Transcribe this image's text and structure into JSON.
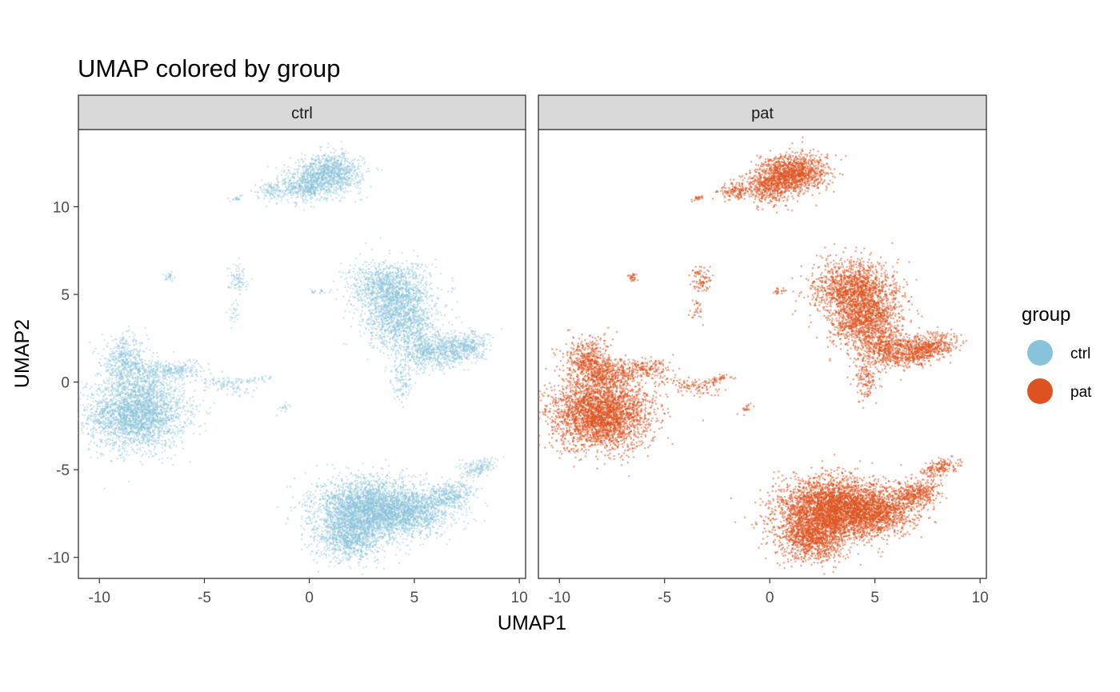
{
  "chart_data": {
    "type": "scatter",
    "title": "UMAP colored by group",
    "xlabel": "UMAP1",
    "ylabel": "UMAP2",
    "xlim": [
      -11,
      10.3
    ],
    "ylim": [
      -11.2,
      14.4
    ],
    "xticks": [
      -10,
      -5,
      0,
      5,
      10
    ],
    "xtick_labels": [
      "-10",
      "-5",
      "0",
      "5",
      "10"
    ],
    "yticks": [
      -10,
      -5,
      0,
      5,
      10
    ],
    "ytick_labels": [
      "-10",
      "-5",
      "0",
      "5",
      "10"
    ],
    "facet_by": "group",
    "panels": [
      {
        "label": "ctrl",
        "color": "#89c3db"
      },
      {
        "label": "pat",
        "color": "#dd5422"
      }
    ],
    "legend": {
      "title": "group",
      "position": "right",
      "entries": [
        {
          "label": "ctrl",
          "color": "#89c3db"
        },
        {
          "label": "pat",
          "color": "#dd5422"
        }
      ]
    },
    "grid": false,
    "clusters": [
      {
        "name": "bottom-left blob",
        "center": [
          -8.2,
          -1.8
        ],
        "size": "very large"
      },
      {
        "name": "left arm",
        "center": [
          -8.8,
          1.2
        ],
        "size": "medium"
      },
      {
        "name": "left bridge",
        "center": [
          -6.0,
          0.6
        ],
        "size": "small"
      },
      {
        "name": "mid-left streak",
        "center": [
          -3.5,
          -0.3
        ],
        "size": "small"
      },
      {
        "name": "top cluster",
        "center": [
          0.9,
          11.4
        ],
        "size": "large"
      },
      {
        "name": "top-left speck",
        "center": [
          -3.5,
          10.5
        ],
        "size": "tiny"
      },
      {
        "name": "small left speck",
        "center": [
          -6.8,
          6.0
        ],
        "size": "tiny"
      },
      {
        "name": "mid upper speck",
        "center": [
          -3.4,
          5.7
        ],
        "size": "small"
      },
      {
        "name": "center speck",
        "center": [
          0.3,
          5.2
        ],
        "size": "tiny"
      },
      {
        "name": "right upper cluster",
        "center": [
          4.3,
          4.2
        ],
        "size": "large"
      },
      {
        "name": "right tail",
        "center": [
          7.2,
          2.0
        ],
        "size": "medium"
      },
      {
        "name": "bottom-right cluster",
        "center": [
          3.2,
          -7.8
        ],
        "size": "very large"
      },
      {
        "name": "bottom-right tail",
        "center": [
          7.6,
          -5.4
        ],
        "size": "medium"
      },
      {
        "name": "small center-low speck",
        "center": [
          -1.2,
          -1.4
        ],
        "size": "tiny"
      }
    ]
  }
}
